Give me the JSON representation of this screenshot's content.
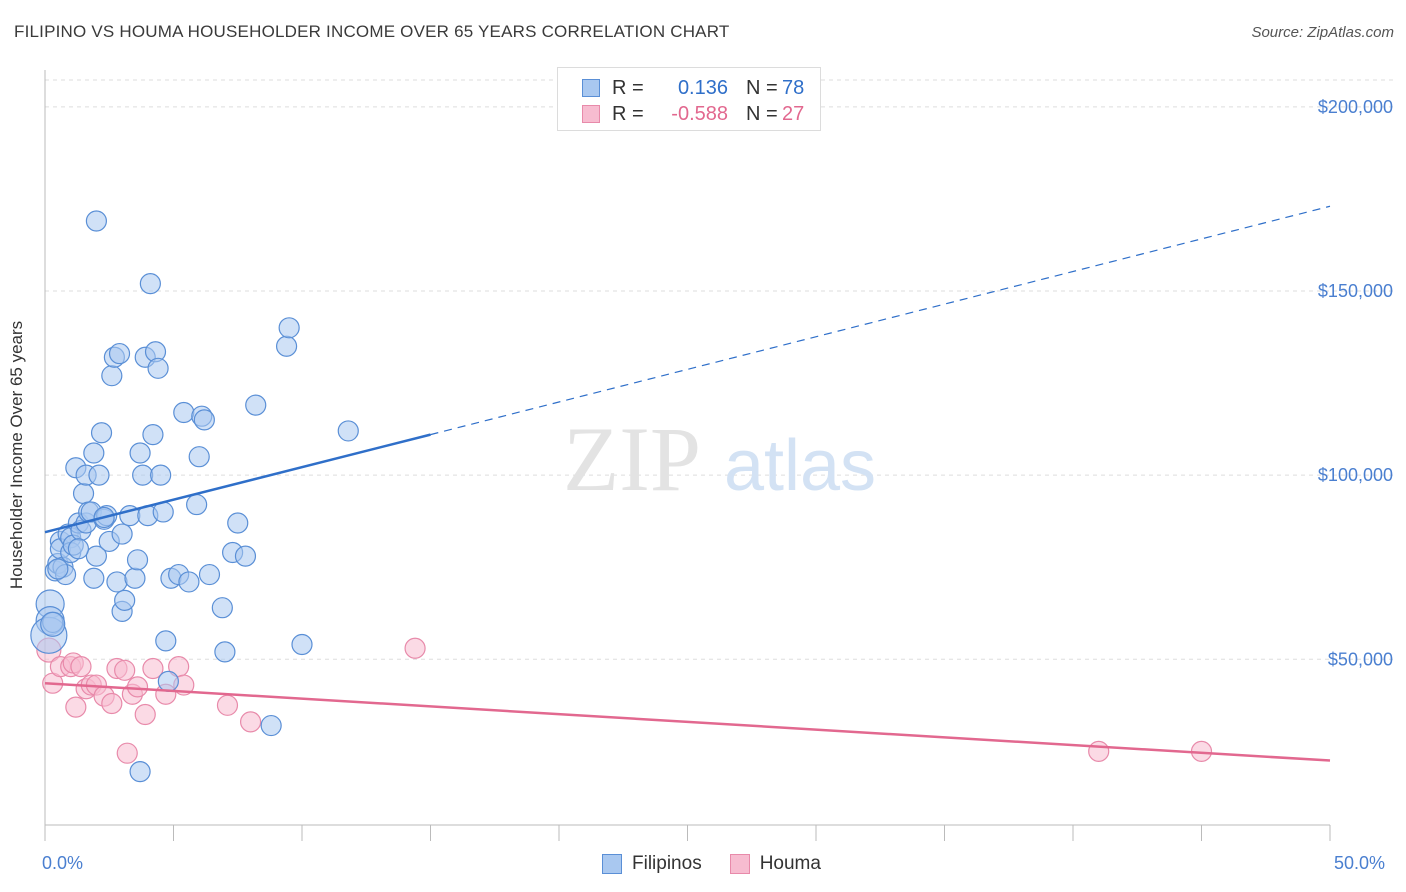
{
  "title": "FILIPINO VS HOUMA HOUSEHOLDER INCOME OVER 65 YEARS CORRELATION CHART",
  "source": "Source: ZipAtlas.com",
  "watermark": {
    "zip": "ZIP",
    "atlas": "atlas"
  },
  "colors": {
    "filipino_fill": "#a9c8f0",
    "filipino_stroke": "#5a8fd6",
    "filipino_line": "#2f6fc9",
    "houma_fill": "#f7bcd0",
    "houma_stroke": "#e88aaa",
    "houma_line": "#e2688f",
    "axis_label": "#4a7fd0",
    "grid": "#dddddd"
  },
  "legend_top": {
    "rows": [
      {
        "r_label": "R =",
        "r_value": "0.136",
        "n_label": "N =",
        "n_value": "78"
      },
      {
        "r_label": "R =",
        "r_value": "-0.588",
        "n_label": "N =",
        "n_value": "27"
      }
    ]
  },
  "legend_bottom": {
    "filipinos": "Filipinos",
    "houma": "Houma"
  },
  "x_axis": {
    "left_label": "0.0%",
    "right_label": "50.0%"
  },
  "chart_data": {
    "type": "scatter",
    "title": "FILIPINO VS HOUMA HOUSEHOLDER INCOME OVER 65 YEARS CORRELATION CHART",
    "xlabel": "",
    "ylabel": "Householder Income Over 65 years",
    "xlim": [
      0,
      50
    ],
    "ylim": [
      5000,
      210000
    ],
    "y_ticks": [
      {
        "value": 50000,
        "label": "$50,000"
      },
      {
        "value": 100000,
        "label": "$100,000"
      },
      {
        "value": 150000,
        "label": "$150,000"
      },
      {
        "value": 200000,
        "label": "$200,000"
      }
    ],
    "grid": true,
    "legend_placement": "bottom",
    "series": [
      {
        "name": "Filipinos",
        "trend": {
          "x": [
            0,
            15
          ],
          "y": [
            84500,
            111000
          ],
          "dashed_extension_to_x": 50,
          "dashed_end_y": 173000
        },
        "points": [
          [
            0.2,
            65000,
            14
          ],
          [
            0.2,
            60500,
            14
          ],
          [
            0.15,
            56500,
            18
          ],
          [
            0.3,
            60000,
            10
          ],
          [
            0.4,
            74000,
            10
          ],
          [
            0.5,
            76000,
            10
          ],
          [
            0.6,
            82000,
            10
          ],
          [
            0.6,
            80000,
            10
          ],
          [
            0.7,
            75000,
            10
          ],
          [
            0.8,
            73000,
            10
          ],
          [
            0.9,
            84000,
            10
          ],
          [
            1.0,
            83000,
            10
          ],
          [
            1.0,
            79000,
            10
          ],
          [
            1.1,
            81000,
            10
          ],
          [
            1.2,
            102000,
            10
          ],
          [
            1.3,
            87000,
            10
          ],
          [
            1.4,
            85000,
            10
          ],
          [
            1.5,
            95000,
            10
          ],
          [
            1.6,
            100000,
            10
          ],
          [
            1.6,
            87000,
            10
          ],
          [
            1.7,
            90000,
            10
          ],
          [
            1.8,
            90000,
            10
          ],
          [
            1.9,
            106000,
            10
          ],
          [
            1.9,
            72000,
            10
          ],
          [
            2.0,
            78000,
            10
          ],
          [
            2.1,
            100000,
            10
          ],
          [
            2.2,
            111500,
            10
          ],
          [
            2.3,
            88000,
            10
          ],
          [
            2.0,
            169000,
            10
          ],
          [
            2.4,
            89000,
            10
          ],
          [
            2.5,
            82000,
            10
          ],
          [
            2.6,
            127000,
            10
          ],
          [
            2.7,
            132000,
            10
          ],
          [
            2.8,
            71000,
            10
          ],
          [
            2.9,
            133000,
            10
          ],
          [
            3.0,
            63000,
            10
          ],
          [
            3.0,
            84000,
            10
          ],
          [
            3.1,
            66000,
            10
          ],
          [
            3.3,
            89000,
            10
          ],
          [
            3.5,
            72000,
            10
          ],
          [
            3.6,
            77000,
            10
          ],
          [
            3.7,
            106000,
            10
          ],
          [
            3.8,
            100000,
            10
          ],
          [
            3.9,
            132000,
            10
          ],
          [
            4.0,
            89000,
            10
          ],
          [
            4.1,
            152000,
            10
          ],
          [
            4.2,
            111000,
            10
          ],
          [
            4.3,
            133500,
            10
          ],
          [
            4.4,
            129000,
            10
          ],
          [
            4.5,
            100000,
            10
          ],
          [
            4.6,
            90000,
            10
          ],
          [
            4.7,
            55000,
            10
          ],
          [
            4.8,
            44000,
            10
          ],
          [
            4.9,
            72000,
            10
          ],
          [
            5.2,
            73000,
            10
          ],
          [
            5.4,
            117000,
            10
          ],
          [
            5.6,
            71000,
            10
          ],
          [
            5.9,
            92000,
            10
          ],
          [
            6.0,
            105000,
            10
          ],
          [
            6.1,
            116000,
            10
          ],
          [
            6.2,
            115000,
            10
          ],
          [
            6.4,
            73000,
            10
          ],
          [
            6.9,
            64000,
            10
          ],
          [
            7.0,
            52000,
            10
          ],
          [
            7.3,
            79000,
            10
          ],
          [
            7.5,
            87000,
            10
          ],
          [
            7.8,
            78000,
            10
          ],
          [
            8.2,
            119000,
            10
          ],
          [
            8.8,
            32000,
            10
          ],
          [
            9.4,
            135000,
            10
          ],
          [
            9.5,
            140000,
            10
          ],
          [
            10.0,
            54000,
            10
          ],
          [
            11.8,
            112000,
            10
          ],
          [
            3.7,
            19500,
            10
          ],
          [
            0.3,
            59500,
            12
          ],
          [
            0.5,
            74500,
            10
          ],
          [
            1.3,
            80000,
            10
          ],
          [
            2.3,
            88500,
            10
          ]
        ]
      },
      {
        "name": "Houma",
        "trend": {
          "x": [
            0,
            50
          ],
          "y": [
            43500,
            22500
          ]
        },
        "points": [
          [
            0.15,
            52500,
            12
          ],
          [
            0.3,
            43500,
            10
          ],
          [
            0.6,
            48000,
            10
          ],
          [
            1.0,
            48000,
            10
          ],
          [
            1.1,
            49000,
            10
          ],
          [
            1.2,
            37000,
            10
          ],
          [
            1.4,
            48000,
            10
          ],
          [
            1.6,
            42000,
            10
          ],
          [
            1.8,
            43000,
            10
          ],
          [
            2.0,
            43000,
            10
          ],
          [
            2.3,
            40000,
            10
          ],
          [
            2.6,
            38000,
            10
          ],
          [
            2.8,
            47500,
            10
          ],
          [
            3.1,
            47000,
            10
          ],
          [
            3.2,
            24500,
            10
          ],
          [
            3.4,
            40500,
            10
          ],
          [
            3.6,
            42500,
            10
          ],
          [
            3.9,
            35000,
            10
          ],
          [
            4.2,
            47500,
            10
          ],
          [
            4.7,
            40500,
            10
          ],
          [
            5.2,
            48000,
            10
          ],
          [
            5.4,
            43000,
            10
          ],
          [
            7.1,
            37500,
            10
          ],
          [
            8.0,
            33000,
            10
          ],
          [
            14.4,
            53000,
            10
          ],
          [
            41.0,
            25000,
            10
          ],
          [
            45.0,
            25000,
            10
          ]
        ]
      }
    ]
  }
}
